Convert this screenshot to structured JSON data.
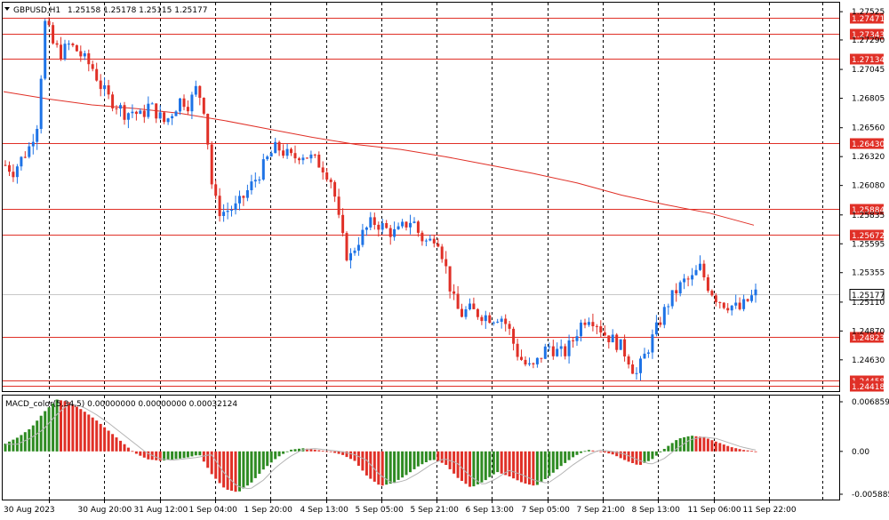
{
  "header": {
    "symbol": "GBPUSD,H1",
    "ohlc": "1.25158 1.25178 1.25115 1.25177",
    "macd": "MACD_color(5,34,5) 0.00000000 0.00000000 0.00032124"
  },
  "colors": {
    "bull": "#1e73e6",
    "bear": "#e03027",
    "level": "#e03027",
    "ma": "#e03027",
    "grid": "#000000",
    "macd_pos": "#2e8b22",
    "macd_neg": "#e03027",
    "signal": "#b4b4b4"
  },
  "chart_data": [
    {
      "type": "candlestick",
      "title": "GBPUSD,H1",
      "ylim": [
        1.2437,
        1.276
      ],
      "y_ticks": [
        "1.27525",
        "1.27290",
        "1.27045",
        "1.26805",
        "1.26560",
        "1.26320",
        "1.26080",
        "1.25835",
        "1.25595",
        "1.25355",
        "1.25110",
        "1.24870",
        "1.24630"
      ],
      "current_price": "1.25177",
      "levels": [
        "1.27471",
        "1.27343",
        "1.27134",
        "1.26430",
        "1.25884",
        "1.25672",
        "1.24823",
        "1.24458",
        "1.24418"
      ],
      "x_labels": [
        "30 Aug 2023",
        "30 Aug 20:00",
        "31 Aug 12:00",
        "1 Sep 04:00",
        "1 Sep 20:00",
        "4 Sep 13:00",
        "5 Sep 05:00",
        "5 Sep 21:00",
        "6 Sep 13:00",
        "7 Sep 05:00",
        "7 Sep 21:00",
        "8 Sep 13:00",
        "11 Sep 06:00",
        "11 Sep 22:00"
      ],
      "moving_average": [
        1.2686,
        1.268,
        1.2675,
        1.2672,
        1.2668,
        1.2662,
        1.2655,
        1.2648,
        1.2642,
        1.2638,
        1.2632,
        1.2625,
        1.2618,
        1.261,
        1.26,
        1.2592,
        1.2585,
        1.2575
      ],
      "price_path": [
        1.2625,
        1.262,
        1.263,
        1.264,
        1.266,
        1.2745,
        1.2725,
        1.2718,
        1.2725,
        1.272,
        1.2712,
        1.2705,
        1.269,
        1.268,
        1.2675,
        1.2668,
        1.267,
        1.2665,
        1.2675,
        1.2668,
        1.266,
        1.267,
        1.268,
        1.2675,
        1.269,
        1.267,
        1.26,
        1.2585,
        1.2588,
        1.259,
        1.26,
        1.261,
        1.262,
        1.2632,
        1.264,
        1.2635,
        1.263,
        1.2635,
        1.2632,
        1.2628,
        1.2622,
        1.261,
        1.257,
        1.2545,
        1.256,
        1.257,
        1.2578,
        1.2575,
        1.257,
        1.2568,
        1.2575,
        1.258,
        1.2565,
        1.256,
        1.2568,
        1.2545,
        1.2515,
        1.25,
        1.2505,
        1.2502,
        1.25,
        1.2498,
        1.25,
        1.249,
        1.247,
        1.246,
        1.2455,
        1.2465,
        1.2475,
        1.247,
        1.2468,
        1.2478,
        1.2492,
        1.25,
        1.2495,
        1.2485,
        1.248,
        1.2475,
        1.2465,
        1.245,
        1.2465,
        1.248,
        1.2495,
        1.251,
        1.252,
        1.2528,
        1.253,
        1.254,
        1.2525,
        1.2515,
        1.251,
        1.2508,
        1.2505,
        1.2512,
        1.2518
      ],
      "macd_ylim": [
        -0.0058852,
        0.0068595
      ],
      "macd_ticks": [
        "0.0068595",
        "0.00",
        "-0.0058852"
      ],
      "macd_values": [
        0.001,
        0.0018,
        0.003,
        0.005,
        0.0066,
        0.0062,
        0.0052,
        0.004,
        0.0026,
        0.0012,
        -0.0002,
        -0.001,
        -0.0012,
        -0.001,
        -0.0008,
        -0.0004,
        -0.003,
        -0.0048,
        -0.0052,
        -0.004,
        -0.0022,
        -0.0008,
        0.0002,
        0.0004,
        0.0002,
        0.0,
        -0.0004,
        -0.0012,
        -0.0032,
        -0.0044,
        -0.004,
        -0.003,
        -0.0018,
        -0.001,
        -0.0016,
        -0.0034,
        -0.0046,
        -0.0038,
        -0.0026,
        -0.0032,
        -0.004,
        -0.0044,
        -0.0032,
        -0.0018,
        -0.0006,
        0.0002,
        0.0,
        -0.0004,
        -0.0012,
        -0.0018,
        -0.001,
        0.0004,
        0.0016,
        0.002,
        0.0018,
        0.0012,
        0.0006,
        0.0002,
        0.0
      ]
    }
  ]
}
